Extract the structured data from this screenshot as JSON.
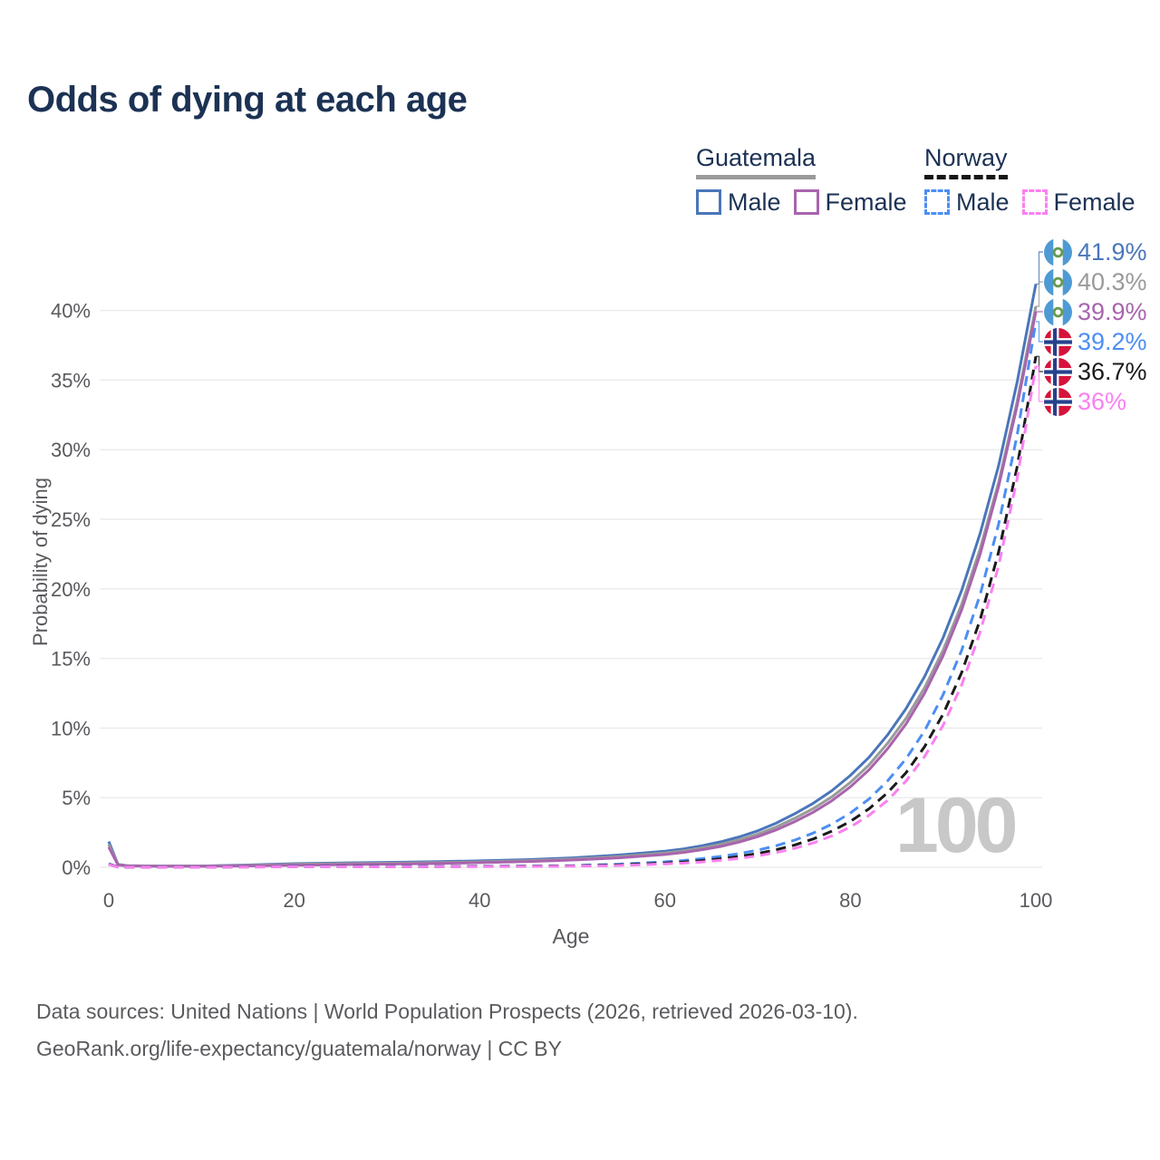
{
  "title": "Odds of dying at each age",
  "legend": {
    "groups": [
      {
        "name": "Guatemala",
        "style": "solid",
        "underline_color": "#9a9a9a",
        "items": [
          {
            "label": "Male",
            "color": "#4a76ba"
          },
          {
            "label": "Female",
            "color": "#a964ad"
          }
        ]
      },
      {
        "name": "Norway",
        "style": "dashed",
        "underline_color": "#161616",
        "items": [
          {
            "label": "Male",
            "color": "#4c8ef2"
          },
          {
            "label": "Female",
            "color": "#fa80f0"
          }
        ]
      }
    ]
  },
  "watermark": "100",
  "sources": {
    "line1": "Data sources: United Nations | World Population Prospects (2026, retrieved 2026-03-10).",
    "line2": "GeoRank.org/life-expectancy/guatemala/norway | CC BY"
  },
  "colors": {
    "title_text": "#1c3254",
    "axis_text": "#595a5e",
    "grid": "#ececec",
    "watermark": "#c8c8c8"
  },
  "chart_data": {
    "type": "line",
    "title": "Odds of dying at each age",
    "xlabel": "Age",
    "ylabel": "Probability of dying",
    "xlim": [
      0,
      100
    ],
    "ylim": [
      0,
      43.5
    ],
    "xticks": [
      0,
      20,
      40,
      60,
      80,
      100
    ],
    "yticks": [
      0,
      5,
      10,
      15,
      20,
      25,
      30,
      35,
      40
    ],
    "ytick_suffix": "%",
    "grid": true,
    "legend_position": "top-right",
    "annotation": "100",
    "series": [
      {
        "name": "Guatemala Male",
        "country": "Guatemala",
        "sex": "Male",
        "color": "#4a76ba",
        "dash": "solid",
        "flag": "guatemala",
        "end_label": "41.9%",
        "end_value": 41.9,
        "points": [
          [
            0,
            1.85
          ],
          [
            1,
            0.2
          ],
          [
            2,
            0.12
          ],
          [
            5,
            0.09
          ],
          [
            10,
            0.09
          ],
          [
            15,
            0.16
          ],
          [
            20,
            0.26
          ],
          [
            25,
            0.31
          ],
          [
            30,
            0.35
          ],
          [
            35,
            0.4
          ],
          [
            40,
            0.46
          ],
          [
            45,
            0.55
          ],
          [
            50,
            0.68
          ],
          [
            55,
            0.88
          ],
          [
            60,
            1.15
          ],
          [
            62,
            1.32
          ],
          [
            64,
            1.55
          ],
          [
            66,
            1.83
          ],
          [
            68,
            2.18
          ],
          [
            70,
            2.62
          ],
          [
            72,
            3.18
          ],
          [
            74,
            3.85
          ],
          [
            76,
            4.6
          ],
          [
            78,
            5.5
          ],
          [
            80,
            6.6
          ],
          [
            82,
            7.9
          ],
          [
            84,
            9.5
          ],
          [
            86,
            11.4
          ],
          [
            88,
            13.7
          ],
          [
            90,
            16.5
          ],
          [
            92,
            19.9
          ],
          [
            94,
            24.0
          ],
          [
            96,
            28.9
          ],
          [
            98,
            34.9
          ],
          [
            100,
            41.9
          ]
        ]
      },
      {
        "name": "Guatemala Both sexes",
        "country": "Guatemala",
        "sex": "Both",
        "color": "#9a9a9a",
        "dash": "solid",
        "flag": "guatemala",
        "end_label": "40.3%",
        "end_value": 40.3,
        "points": [
          [
            0,
            1.65
          ],
          [
            1,
            0.18
          ],
          [
            2,
            0.11
          ],
          [
            5,
            0.08
          ],
          [
            10,
            0.08
          ],
          [
            15,
            0.13
          ],
          [
            20,
            0.21
          ],
          [
            25,
            0.26
          ],
          [
            30,
            0.29
          ],
          [
            35,
            0.33
          ],
          [
            40,
            0.39
          ],
          [
            45,
            0.47
          ],
          [
            50,
            0.59
          ],
          [
            55,
            0.77
          ],
          [
            60,
            1.02
          ],
          [
            62,
            1.18
          ],
          [
            64,
            1.39
          ],
          [
            66,
            1.65
          ],
          [
            68,
            1.97
          ],
          [
            70,
            2.38
          ],
          [
            72,
            2.9
          ],
          [
            74,
            3.52
          ],
          [
            76,
            4.22
          ],
          [
            78,
            5.06
          ],
          [
            80,
            6.1
          ],
          [
            82,
            7.35
          ],
          [
            84,
            8.9
          ],
          [
            86,
            10.7
          ],
          [
            88,
            12.9
          ],
          [
            90,
            15.6
          ],
          [
            92,
            18.9
          ],
          [
            94,
            22.9
          ],
          [
            96,
            27.7
          ],
          [
            98,
            33.5
          ],
          [
            100,
            40.3
          ]
        ]
      },
      {
        "name": "Guatemala Female",
        "country": "Guatemala",
        "sex": "Female",
        "color": "#a964ad",
        "dash": "solid",
        "flag": "guatemala",
        "end_label": "39.9%",
        "end_value": 39.9,
        "points": [
          [
            0,
            1.45
          ],
          [
            1,
            0.16
          ],
          [
            2,
            0.1
          ],
          [
            5,
            0.07
          ],
          [
            10,
            0.07
          ],
          [
            15,
            0.1
          ],
          [
            20,
            0.15
          ],
          [
            25,
            0.19
          ],
          [
            30,
            0.23
          ],
          [
            35,
            0.27
          ],
          [
            40,
            0.33
          ],
          [
            45,
            0.41
          ],
          [
            50,
            0.52
          ],
          [
            55,
            0.68
          ],
          [
            60,
            0.92
          ],
          [
            62,
            1.07
          ],
          [
            64,
            1.26
          ],
          [
            66,
            1.5
          ],
          [
            68,
            1.81
          ],
          [
            70,
            2.2
          ],
          [
            72,
            2.69
          ],
          [
            74,
            3.28
          ],
          [
            76,
            3.96
          ],
          [
            78,
            4.78
          ],
          [
            80,
            5.78
          ],
          [
            82,
            7.0
          ],
          [
            84,
            8.5
          ],
          [
            86,
            10.3
          ],
          [
            88,
            12.5
          ],
          [
            90,
            15.2
          ],
          [
            92,
            18.5
          ],
          [
            94,
            22.5
          ],
          [
            96,
            27.4
          ],
          [
            98,
            33.2
          ],
          [
            100,
            39.9
          ]
        ]
      },
      {
        "name": "Norway Male",
        "country": "Norway",
        "sex": "Male",
        "color": "#4c8ef2",
        "dash": "dashed",
        "flag": "norway",
        "end_label": "39.2%",
        "end_value": 39.2,
        "points": [
          [
            0,
            0.25
          ],
          [
            1,
            0.02
          ],
          [
            2,
            0.015
          ],
          [
            5,
            0.01
          ],
          [
            10,
            0.012
          ],
          [
            15,
            0.03
          ],
          [
            20,
            0.06
          ],
          [
            25,
            0.06
          ],
          [
            30,
            0.07
          ],
          [
            35,
            0.07
          ],
          [
            40,
            0.08
          ],
          [
            45,
            0.09
          ],
          [
            50,
            0.12
          ],
          [
            55,
            0.22
          ],
          [
            60,
            0.39
          ],
          [
            62,
            0.49
          ],
          [
            64,
            0.62
          ],
          [
            66,
            0.78
          ],
          [
            68,
            0.98
          ],
          [
            70,
            1.23
          ],
          [
            72,
            1.55
          ],
          [
            74,
            1.95
          ],
          [
            76,
            2.46
          ],
          [
            78,
            3.1
          ],
          [
            80,
            3.9
          ],
          [
            82,
            4.9
          ],
          [
            84,
            6.2
          ],
          [
            86,
            7.8
          ],
          [
            88,
            9.8
          ],
          [
            90,
            12.4
          ],
          [
            92,
            15.6
          ],
          [
            94,
            19.6
          ],
          [
            96,
            24.7
          ],
          [
            98,
            31.1
          ],
          [
            100,
            39.2
          ]
        ]
      },
      {
        "name": "Norway Both sexes",
        "country": "Norway",
        "sex": "Both",
        "color": "#1a1a1a",
        "dash": "dashed",
        "flag": "norway",
        "end_label": "36.7%",
        "end_value": 36.7,
        "points": [
          [
            0,
            0.22
          ],
          [
            1,
            0.018
          ],
          [
            2,
            0.012
          ],
          [
            5,
            0.008
          ],
          [
            10,
            0.01
          ],
          [
            15,
            0.025
          ],
          [
            20,
            0.04
          ],
          [
            25,
            0.045
          ],
          [
            30,
            0.05
          ],
          [
            35,
            0.055
          ],
          [
            40,
            0.065
          ],
          [
            45,
            0.075
          ],
          [
            50,
            0.1
          ],
          [
            55,
            0.17
          ],
          [
            60,
            0.3
          ],
          [
            62,
            0.38
          ],
          [
            64,
            0.48
          ],
          [
            66,
            0.61
          ],
          [
            68,
            0.78
          ],
          [
            70,
            0.99
          ],
          [
            72,
            1.26
          ],
          [
            74,
            1.6
          ],
          [
            76,
            2.04
          ],
          [
            78,
            2.6
          ],
          [
            80,
            3.3
          ],
          [
            82,
            4.2
          ],
          [
            84,
            5.35
          ],
          [
            86,
            6.8
          ],
          [
            88,
            8.66
          ],
          [
            90,
            11.0
          ],
          [
            92,
            14.0
          ],
          [
            94,
            17.8
          ],
          [
            96,
            22.7
          ],
          [
            98,
            28.8
          ],
          [
            100,
            36.7
          ]
        ]
      },
      {
        "name": "Norway Female",
        "country": "Norway",
        "sex": "Female",
        "color": "#fa80f0",
        "dash": "dashed",
        "flag": "norway",
        "end_label": "36%",
        "end_value": 36.0,
        "points": [
          [
            0,
            0.2
          ],
          [
            1,
            0.015
          ],
          [
            2,
            0.01
          ],
          [
            5,
            0.007
          ],
          [
            10,
            0.009
          ],
          [
            15,
            0.02
          ],
          [
            20,
            0.03
          ],
          [
            25,
            0.035
          ],
          [
            30,
            0.04
          ],
          [
            35,
            0.045
          ],
          [
            40,
            0.05
          ],
          [
            45,
            0.06
          ],
          [
            50,
            0.08
          ],
          [
            55,
            0.13
          ],
          [
            60,
            0.24
          ],
          [
            62,
            0.3
          ],
          [
            64,
            0.385
          ],
          [
            66,
            0.5
          ],
          [
            68,
            0.64
          ],
          [
            70,
            0.82
          ],
          [
            72,
            1.06
          ],
          [
            74,
            1.36
          ],
          [
            76,
            1.75
          ],
          [
            78,
            2.25
          ],
          [
            80,
            2.9
          ],
          [
            82,
            3.73
          ],
          [
            84,
            4.8
          ],
          [
            86,
            6.2
          ],
          [
            88,
            7.95
          ],
          [
            90,
            10.2
          ],
          [
            92,
            13.1
          ],
          [
            94,
            16.9
          ],
          [
            96,
            21.7
          ],
          [
            98,
            27.97
          ],
          [
            100,
            36.0
          ]
        ]
      }
    ]
  }
}
